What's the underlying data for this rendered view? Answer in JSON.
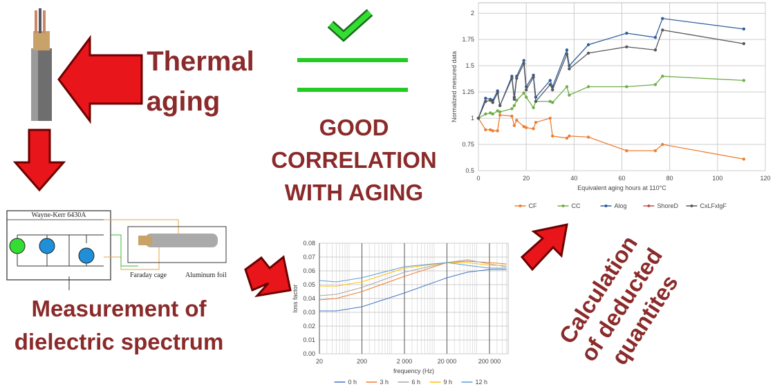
{
  "thermal_aging": [
    "Thermal",
    "aging"
  ],
  "correlation": [
    "GOOD",
    "CORRELATION",
    "WITH AGING"
  ],
  "measurement": [
    "Measurement of",
    "dielectric spectrum"
  ],
  "calculation": [
    "Calculation",
    "of deducted",
    "quantites"
  ],
  "circuit": {
    "instrument": "Wayne-Kerr 6430A",
    "cage": "Faraday cage",
    "foil": "Aluminum foil"
  },
  "chart_data": [
    {
      "type": "line",
      "markers": true,
      "x_label": "Equivalent aging hours at 110°C",
      "y_label": "Normalized mesured data",
      "x": [
        0,
        3,
        5,
        6,
        8,
        9,
        14,
        15,
        16,
        19,
        20,
        23,
        24,
        30,
        31,
        37,
        38,
        46,
        62,
        74,
        77,
        111
      ],
      "xlim": [
        0,
        120
      ],
      "xticks": [
        0,
        20,
        40,
        60,
        80,
        100,
        120
      ],
      "ylim": [
        0.5,
        2.1
      ],
      "yticks": [
        0.5,
        0.75,
        1,
        1.25,
        1.5,
        1.75,
        2
      ],
      "grid": true,
      "log_x": false,
      "series": [
        {
          "name": "CF",
          "color": "#ed7d31",
          "values": [
            1,
            0.89,
            0.89,
            0.88,
            0.88,
            1.03,
            1.02,
            0.93,
            0.98,
            0.92,
            0.91,
            0.9,
            0.96,
            1.0,
            0.83,
            0.81,
            0.83,
            0.82,
            0.69,
            0.69,
            0.75,
            0.61
          ]
        },
        {
          "name": "CC",
          "color": "#70ad47",
          "values": [
            1,
            1.04,
            1.05,
            1.04,
            1.07,
            1.06,
            1.09,
            1.12,
            1.17,
            1.24,
            1.2,
            1.1,
            1.16,
            1.16,
            1.15,
            1.3,
            1.22,
            1.3,
            1.3,
            1.32,
            1.4,
            1.36
          ]
        },
        {
          "name": "Alog",
          "color": "#2e5e9e",
          "values": [
            1,
            1.19,
            1.18,
            1.17,
            1.26,
            1.12,
            1.4,
            1.2,
            1.4,
            1.55,
            1.3,
            1.41,
            1.2,
            1.36,
            1.3,
            1.65,
            1.5,
            1.7,
            1.81,
            1.77,
            1.95,
            1.85
          ]
        },
        {
          "name": "ShoreD",
          "color": "#c0504d",
          "values": [
            null,
            null,
            null,
            null,
            null,
            null,
            null,
            null,
            null,
            null,
            null,
            null,
            null,
            null,
            null,
            null,
            null,
            null,
            null,
            null,
            null,
            null
          ]
        },
        {
          "name": "CxLFxlgF",
          "color": "#595959",
          "values": [
            1,
            1.16,
            1.17,
            1.15,
            1.24,
            1.12,
            1.38,
            1.18,
            1.38,
            1.52,
            1.27,
            1.39,
            1.16,
            1.32,
            1.27,
            1.61,
            1.47,
            1.62,
            1.68,
            1.65,
            1.84,
            1.71
          ]
        }
      ]
    },
    {
      "type": "line",
      "markers": false,
      "x_label": "frequency (Hz)",
      "y_label": "loss factor",
      "x": [
        20,
        50,
        200,
        2000,
        20000,
        60000,
        200000,
        500000
      ],
      "xlim": [
        20,
        550000
      ],
      "xticks": [
        20,
        200,
        {
          "value": 2000,
          "label": "2 000"
        },
        {
          "value": 20000,
          "label": "20 000"
        },
        {
          "value": 200000,
          "label": "200 000"
        }
      ],
      "ylim": [
        0,
        0.08
      ],
      "yticks": [
        {
          "value": 0,
          "label": "0.00"
        },
        0.01,
        0.02,
        0.03,
        0.04,
        0.05,
        0.06,
        0.07,
        0.08
      ],
      "grid": true,
      "log_x": true,
      "series": [
        {
          "name": "0 h",
          "color": "#4472c4",
          "values": [
            0.031,
            0.031,
            0.034,
            0.044,
            0.055,
            0.059,
            0.061,
            0.061
          ]
        },
        {
          "name": "3 h",
          "color": "#ed7d31",
          "values": [
            0.039,
            0.04,
            0.045,
            0.056,
            0.066,
            0.067,
            0.066,
            0.065
          ]
        },
        {
          "name": "6 h",
          "color": "#a5a5a5",
          "values": [
            0.042,
            0.043,
            0.048,
            0.059,
            0.066,
            0.068,
            0.065,
            0.063
          ]
        },
        {
          "name": "9 h",
          "color": "#ffc000",
          "values": [
            0.049,
            0.049,
            0.052,
            0.062,
            0.066,
            0.066,
            0.064,
            0.064
          ]
        },
        {
          "name": "12 h",
          "color": "#5b9bd5",
          "values": [
            0.053,
            0.052,
            0.055,
            0.063,
            0.066,
            0.064,
            0.062,
            0.062
          ]
        }
      ]
    }
  ]
}
